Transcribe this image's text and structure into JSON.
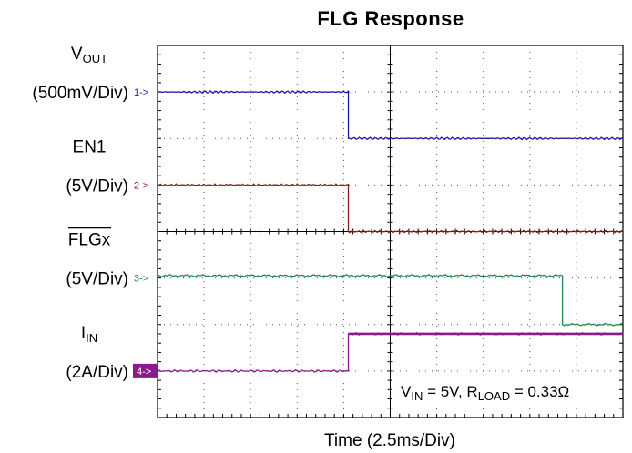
{
  "chart_data": {
    "type": "line",
    "title": "FLG  Response",
    "xlabel": "Time  (2.5ms/Div)",
    "x_divisions": 10,
    "y_divisions": 8,
    "x_time_per_div_ms": 2.5,
    "grid": true,
    "annotation": {
      "v_base": "V",
      "v_sub": "IN",
      "v_text": " = 5V, R",
      "r_sub": "LOAD",
      "r_text": " = 0.33Ω"
    },
    "channels": [
      {
        "id": 1,
        "marker": "1->",
        "color": "#1a1aa6",
        "label_main": "V",
        "label_sub": "OUT",
        "label_scale": "(500mV/Div)",
        "ref_div": 1.0,
        "points": [
          [
            0,
            1.0
          ],
          [
            4.1,
            1.0
          ],
          [
            4.1,
            2.0
          ],
          [
            10,
            2.0
          ]
        ]
      },
      {
        "id": 2,
        "marker": "2->",
        "color": "#8b1a1a",
        "label_main": "EN1",
        "label_scale": "(5V/Div)",
        "ref_div": 3.0,
        "points": [
          [
            0,
            3.0
          ],
          [
            4.1,
            3.0
          ],
          [
            4.1,
            4.0
          ],
          [
            10,
            4.0
          ]
        ]
      },
      {
        "id": 3,
        "marker": "3->",
        "color": "#1f8a4a",
        "label_main": "FLGx",
        "label_overline": true,
        "label_scale": "(5V/Div)",
        "ref_div": 5.0,
        "points": [
          [
            0,
            4.95
          ],
          [
            8.7,
            4.95
          ],
          [
            8.7,
            6.0
          ],
          [
            10,
            6.0
          ]
        ]
      },
      {
        "id": 4,
        "marker": "4->",
        "color": "#8b1a8b",
        "label_main": "I",
        "label_sub": "IN",
        "label_scale": "(2A/Div)",
        "ref_div": 7.0,
        "points": [
          [
            0,
            7.0
          ],
          [
            4.1,
            7.0
          ],
          [
            4.1,
            6.2
          ],
          [
            10,
            6.2
          ]
        ]
      }
    ]
  }
}
